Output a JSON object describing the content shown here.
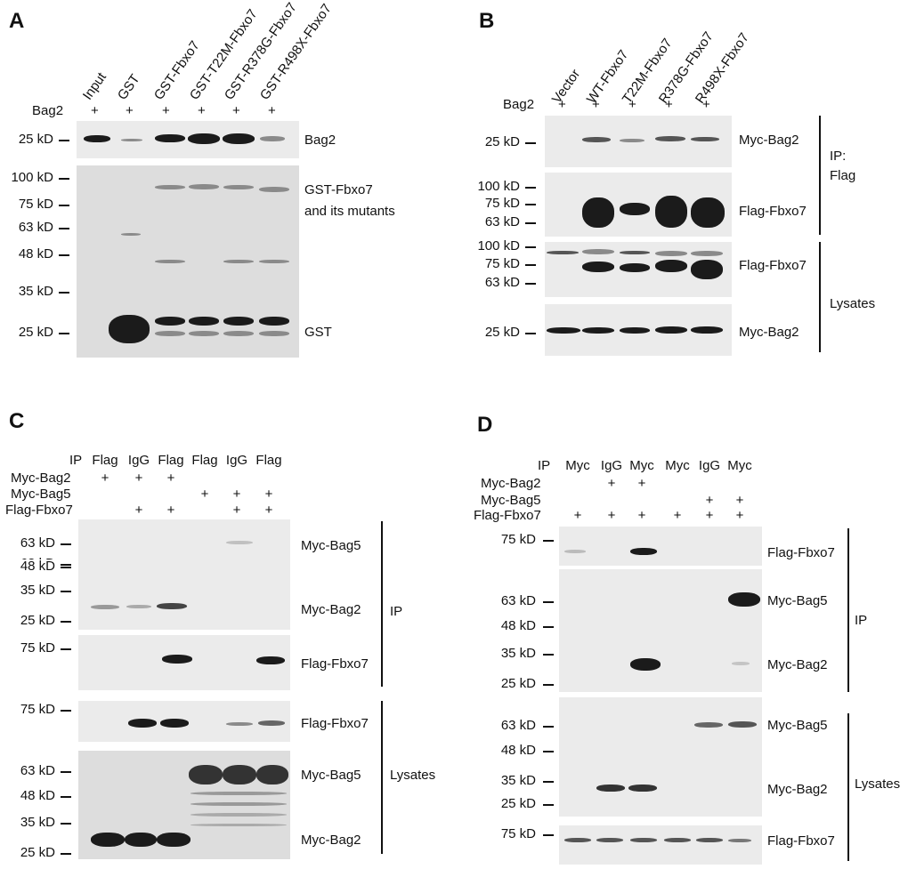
{
  "panelA": {
    "label": "A",
    "lanes": [
      "Input",
      "GST",
      "GST-Fbxo7",
      "GST-T22M-Fbxo7",
      "GST-R378G-Fbxo7",
      "GST-R498X-Fbxo7"
    ],
    "row_label": "Bag2",
    "plus": [
      "+",
      "+",
      "+",
      "+",
      "+",
      "+"
    ],
    "mw_top": [
      "25 kD"
    ],
    "mw_bottom": [
      "100 kD",
      "75 kD",
      "63 kD",
      "48 kD",
      "35 kD",
      "25 kD"
    ],
    "band_labels": {
      "bag2": "Bag2",
      "gst_fbxo7_1": "GST-Fbxo7",
      "gst_fbxo7_2": "and its mutants",
      "gst": "GST"
    }
  },
  "panelB": {
    "label": "B",
    "lanes": [
      "Vector",
      "WT-Fbxo7",
      "T22M-Fbxo7",
      "R378G-Fbxo7",
      "R498X-Fbxo7"
    ],
    "row_label": "Bag2",
    "plus": [
      "+",
      "+",
      "+",
      "+",
      "+"
    ],
    "mw1": [
      "25 kD"
    ],
    "mw2": [
      "100 kD",
      "75 kD",
      "63 kD"
    ],
    "mw3": [
      "100 kD",
      "75 kD",
      "63 kD"
    ],
    "mw4": [
      "25 kD"
    ],
    "band_labels": {
      "myc_bag2_ip": "Myc-Bag2",
      "flag_fbxo7_ip": "Flag-Fbxo7",
      "flag_fbxo7_lys": "Flag-Fbxo7",
      "myc_bag2_lys": "Myc-Bag2"
    },
    "group_ip_1": "IP:",
    "group_ip_2": "Flag",
    "group_lys": "Lysates"
  },
  "panelC": {
    "label": "C",
    "ip_label": "IP",
    "ip_lanes": [
      "Flag",
      "IgG",
      "Flag",
      "Flag",
      "IgG",
      "Flag"
    ],
    "rows": [
      {
        "name": "Myc-Bag2",
        "marks": [
          "+",
          "+",
          "+",
          "",
          "",
          ""
        ]
      },
      {
        "name": "Myc-Bag5",
        "marks": [
          "",
          "",
          "",
          "+",
          "+",
          "+"
        ]
      },
      {
        "name": "Flag-Fbxo7",
        "marks": [
          "",
          "+",
          "+",
          "",
          "+",
          "+"
        ]
      }
    ],
    "mw1": [
      "63 kD",
      "48 kD",
      "35 kD",
      "25 kD"
    ],
    "mw2": [
      "75 kD"
    ],
    "mw3": [
      "75 kD"
    ],
    "mw4": [
      "63 kD",
      "48 kD",
      "35 kD",
      "25 kD"
    ],
    "band_labels": {
      "bag5_ip": "Myc-Bag5",
      "bag2_ip": "Myc-Bag2",
      "fbxo7_ip": "Flag-Fbxo7",
      "fbxo7_lys": "Flag-Fbxo7",
      "bag5_lys": "Myc-Bag5",
      "bag2_lys": "Myc-Bag2"
    },
    "group_ip": "IP",
    "group_lys": "Lysates"
  },
  "panelD": {
    "label": "D",
    "ip_label": "IP",
    "ip_lanes": [
      "Myc",
      "IgG",
      "Myc",
      "Myc",
      "IgG",
      "Myc"
    ],
    "rows": [
      {
        "name": "Myc-Bag2",
        "marks": [
          "",
          "+",
          "+",
          "",
          "",
          ""
        ]
      },
      {
        "name": "Myc-Bag5",
        "marks": [
          "",
          "",
          "",
          "",
          "+",
          "+"
        ]
      },
      {
        "name": "Flag-Fbxo7",
        "marks": [
          "+",
          "+",
          "+",
          "+",
          "+",
          "+"
        ]
      }
    ],
    "mw1": [
      "75 kD"
    ],
    "mw2": [
      "63 kD",
      "48 kD",
      "35 kD",
      "25 kD"
    ],
    "mw3": [
      "63 kD",
      "48 kD",
      "35 kD",
      "25 kD"
    ],
    "mw4": [
      "75 kD"
    ],
    "band_labels": {
      "fbxo7_ip": "Flag-Fbxo7",
      "bag5_ip": "Myc-Bag5",
      "bag2_ip": "Myc-Bag2",
      "bag5_lys": "Myc-Bag5",
      "bag2_lys": "Myc-Bag2",
      "fbxo7_lys": "Flag-Fbxo7"
    },
    "group_ip": "IP",
    "group_lys": "Lysates"
  }
}
